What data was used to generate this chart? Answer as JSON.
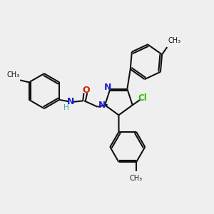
{
  "bg_color": "#efefef",
  "bond_color": "#111111",
  "n_color": "#2020cc",
  "o_color": "#cc2200",
  "cl_color": "#33bb00",
  "h_color": "#44aaaa",
  "line_width": 1.5,
  "fig_size": [
    3.0,
    3.0
  ],
  "dpi": 100,
  "xlim": [
    0,
    10
  ],
  "ylim": [
    0,
    10
  ]
}
